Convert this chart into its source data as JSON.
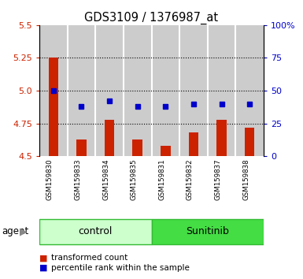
{
  "title": "GDS3109 / 1376987_at",
  "samples": [
    "GSM159830",
    "GSM159833",
    "GSM159834",
    "GSM159835",
    "GSM159831",
    "GSM159832",
    "GSM159837",
    "GSM159838"
  ],
  "red_bars": [
    5.25,
    4.63,
    4.78,
    4.63,
    4.58,
    4.68,
    4.78,
    4.72
  ],
  "blue_dots": [
    50,
    38,
    42,
    38,
    38,
    40,
    40,
    40
  ],
  "ylim_left": [
    4.5,
    5.5
  ],
  "ylim_right": [
    0,
    100
  ],
  "yticks_left": [
    4.5,
    4.75,
    5.0,
    5.25,
    5.5
  ],
  "yticks_right": [
    0,
    25,
    50,
    75,
    100
  ],
  "ytick_labels_right": [
    "0",
    "25",
    "50",
    "75",
    "100%"
  ],
  "bar_color": "#cc2200",
  "dot_color": "#0000cc",
  "bar_bottom": 4.5,
  "groups": [
    {
      "label": "control",
      "indices": [
        0,
        1,
        2,
        3
      ],
      "color": "#ccffcc",
      "edge_color": "#33bb33"
    },
    {
      "label": "Sunitinib",
      "indices": [
        4,
        5,
        6,
        7
      ],
      "color": "#44dd44",
      "edge_color": "#33bb33"
    }
  ],
  "group_label": "agent",
  "legend_items": [
    {
      "color": "#cc2200",
      "label": "transformed count"
    },
    {
      "color": "#0000cc",
      "label": "percentile rank within the sample"
    }
  ],
  "grid_lines": [
    4.75,
    5.0,
    5.25
  ],
  "title_color": "#000000",
  "left_tick_color": "#cc2200",
  "right_tick_color": "#0000cc",
  "bg_color": "#ffffff",
  "sample_area_bg": "#cccccc"
}
